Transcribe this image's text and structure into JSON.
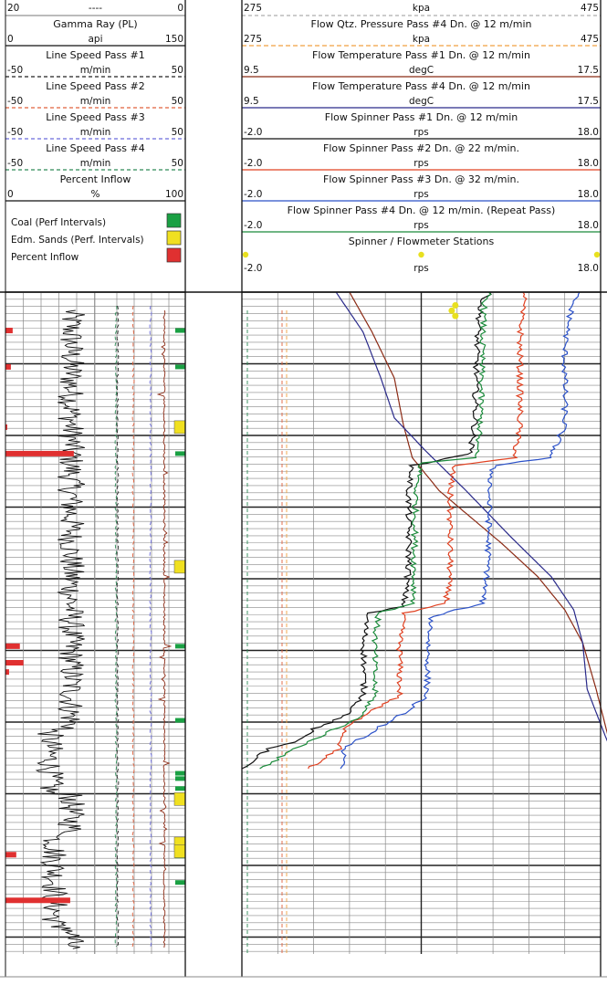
{
  "chart_data": {
    "type": "line",
    "left_track": {
      "curves": [
        {
          "name": "----",
          "min": "20",
          "max": "0",
          "units": "----",
          "color": "#555555",
          "dash": ""
        },
        {
          "name": "Gamma Ray (PL)",
          "min": "0",
          "max": "150",
          "units": "api",
          "color": "#111111",
          "dash": ""
        },
        {
          "name": "Line Speed Pass #1",
          "min": "-50",
          "max": "50",
          "units": "m/min",
          "color": "#222222",
          "dash": "4,3"
        },
        {
          "name": "Line Speed Pass #2",
          "min": "-50",
          "max": "50",
          "units": "m/min",
          "color": "#e0603c",
          "dash": "4,3"
        },
        {
          "name": "Line Speed Pass #3",
          "min": "-50",
          "max": "50",
          "units": "m/min",
          "color": "#6a6adc",
          "dash": "4,3"
        },
        {
          "name": "Line Speed Pass #4",
          "min": "-50",
          "max": "50",
          "units": "m/min",
          "color": "#2e8b57",
          "dash": "4,3"
        },
        {
          "name": "Percent Inflow",
          "min": "0",
          "max": "100",
          "units": "%",
          "color": "#111111",
          "dash": ""
        }
      ],
      "legend": [
        {
          "label": "Coal (Perf Intervals)",
          "color": "#1aa043"
        },
        {
          "label": "Edm. Sands (Perf. Intervals)",
          "color": "#f0e020"
        },
        {
          "label": "Percent Inflow",
          "color": "#e03030"
        }
      ],
      "coal_intervals": [
        0.058,
        0.113,
        0.244,
        0.535,
        0.647,
        0.727,
        0.735,
        0.75,
        0.852,
        0.892
      ],
      "sand_intervals": [
        0.204,
        0.415,
        0.766,
        0.833,
        0.845
      ],
      "inflow_percent": [
        {
          "depth": 0.058,
          "value": 4
        },
        {
          "depth": 0.113,
          "value": 3
        },
        {
          "depth": 0.204,
          "value": 1
        },
        {
          "depth": 0.244,
          "value": 38
        },
        {
          "depth": 0.535,
          "value": 8
        },
        {
          "depth": 0.56,
          "value": 10
        },
        {
          "depth": 0.574,
          "value": 2
        },
        {
          "depth": 0.85,
          "value": 6
        },
        {
          "depth": 0.919,
          "value": 36
        }
      ]
    },
    "right_track": {
      "curves": [
        {
          "name": "",
          "min": "275",
          "max": "475",
          "units": "kpa",
          "color": "#999999",
          "dash": "4,3"
        },
        {
          "name": "Flow Qtz. Pressure Pass #4 Dn. @ 12 m/min",
          "min": "275",
          "max": "475",
          "units": "kpa",
          "color": "#f0a040",
          "dash": "5,3"
        },
        {
          "name": "Flow Temperature Pass #1 Dn. @ 12 m/min",
          "min": "9.5",
          "max": "17.5",
          "units": "degC",
          "color": "#8b2a14",
          "dash": ""
        },
        {
          "name": "Flow Temperature Pass #4 Dn. @ 12 m/min",
          "min": "9.5",
          "max": "17.5",
          "units": "degC",
          "color": "#2a2a8a",
          "dash": ""
        },
        {
          "name": "Flow Spinner Pass #1 Dn. @ 12 m/min",
          "min": "-2.0",
          "max": "18.0",
          "units": "rps",
          "color": "#111111",
          "dash": ""
        },
        {
          "name": "Flow Spinner Pass #2 Dn. @ 22 m/min.",
          "min": "-2.0",
          "max": "18.0",
          "units": "rps",
          "color": "#e04020",
          "dash": ""
        },
        {
          "name": "Flow Spinner Pass #3 Dn. @ 32 m/min.",
          "min": "-2.0",
          "max": "18.0",
          "units": "rps",
          "color": "#2a50c8",
          "dash": ""
        },
        {
          "name": "Flow Spinner Pass #4 Dn. @ 12 m/min. (Repeat Pass)",
          "min": "-2.0",
          "max": "18.0",
          "units": "rps",
          "color": "#1a8a3a",
          "dash": ""
        },
        {
          "name": "Spinner / Flowmeter Stations",
          "min": "-2.0",
          "max": "18.0",
          "units": "rps",
          "color": "#e8e020",
          "dash": "dots"
        }
      ],
      "series": [
        {
          "name": "Flow Temperature Pass #1 Dn. @ 12 m/min",
          "units": "degC",
          "xrange": [
            9.5,
            17.5
          ],
          "color": "#8b2a14",
          "points": [
            [
              0.0,
              11.9
            ],
            [
              0.06,
              12.4
            ],
            [
              0.13,
              12.9
            ],
            [
              0.2,
              13.1
            ],
            [
              0.25,
              13.3
            ],
            [
              0.3,
              13.9
            ],
            [
              0.34,
              14.6
            ],
            [
              0.38,
              15.3
            ],
            [
              0.43,
              16.1
            ],
            [
              0.48,
              16.7
            ],
            [
              0.53,
              17.1
            ],
            [
              0.6,
              17.4
            ],
            [
              0.68,
              17.7
            ],
            [
              0.72,
              18.0
            ]
          ]
        },
        {
          "name": "Flow Temperature Pass #4 Dn. @ 12 m/min",
          "units": "degC",
          "xrange": [
            9.5,
            17.5
          ],
          "color": "#2a2a8a",
          "points": [
            [
              0.0,
              11.6
            ],
            [
              0.06,
              12.2
            ],
            [
              0.13,
              12.6
            ],
            [
              0.19,
              12.9
            ],
            [
              0.24,
              13.6
            ],
            [
              0.3,
              14.5
            ],
            [
              0.37,
              15.5
            ],
            [
              0.43,
              16.4
            ],
            [
              0.48,
              16.9
            ],
            [
              0.53,
              17.1
            ],
            [
              0.6,
              17.2
            ],
            [
              0.67,
              17.6
            ],
            [
              0.72,
              17.9
            ]
          ]
        },
        {
          "name": "Flow Spinner Pass #1 Dn. @ 12 m/min",
          "units": "rps",
          "xrange": [
            -2.0,
            18.0
          ],
          "color": "#111111",
          "points": [
            [
              0.0,
              11.8
            ],
            [
              0.02,
              11.3
            ],
            [
              0.08,
              11.1
            ],
            [
              0.2,
              11.0
            ],
            [
              0.245,
              10.7
            ],
            [
              0.262,
              7.5
            ],
            [
              0.3,
              7.3
            ],
            [
              0.42,
              7.3
            ],
            [
              0.475,
              7.0
            ],
            [
              0.485,
              5.0
            ],
            [
              0.53,
              4.8
            ],
            [
              0.61,
              4.8
            ],
            [
              0.64,
              3.8
            ],
            [
              0.66,
              2.0
            ],
            [
              0.68,
              1.0
            ],
            [
              0.69,
              -0.5
            ],
            [
              0.72,
              -2.0
            ]
          ]
        },
        {
          "name": "Flow Spinner Pass #2 Dn. @ 22 m/min.",
          "units": "rps",
          "xrange": [
            -2.0,
            18.0
          ],
          "color": "#e04020",
          "points": [
            [
              0.0,
              13.8
            ],
            [
              0.03,
              13.6
            ],
            [
              0.08,
              13.5
            ],
            [
              0.2,
              13.5
            ],
            [
              0.25,
              13.2
            ],
            [
              0.262,
              9.8
            ],
            [
              0.3,
              9.6
            ],
            [
              0.42,
              9.6
            ],
            [
              0.47,
              9.4
            ],
            [
              0.485,
              7.0
            ],
            [
              0.53,
              6.8
            ],
            [
              0.61,
              6.8
            ],
            [
              0.635,
              5.0
            ],
            [
              0.66,
              3.8
            ],
            [
              0.69,
              3.4
            ],
            [
              0.72,
              1.7
            ]
          ]
        },
        {
          "name": "Flow Spinner Pass #3 Dn. @ 32 m/min.",
          "units": "rps",
          "xrange": [
            -2.0,
            18.0
          ],
          "color": "#2a50c8",
          "points": [
            [
              0.0,
              16.7
            ],
            [
              0.02,
              16.4
            ],
            [
              0.08,
              16.0
            ],
            [
              0.2,
              16.0
            ],
            [
              0.25,
              15.2
            ],
            [
              0.262,
              12.0
            ],
            [
              0.3,
              11.8
            ],
            [
              0.42,
              11.7
            ],
            [
              0.47,
              11.4
            ],
            [
              0.49,
              8.6
            ],
            [
              0.53,
              8.4
            ],
            [
              0.61,
              8.3
            ],
            [
              0.64,
              6.8
            ],
            [
              0.66,
              5.5
            ],
            [
              0.69,
              3.7
            ],
            [
              0.72,
              3.5
            ]
          ]
        },
        {
          "name": "Flow Spinner Pass #4 Dn. @ 12 m/min. (Repeat Pass)",
          "units": "rps",
          "xrange": [
            -2.0,
            18.0
          ],
          "color": "#1a8a3a",
          "points": [
            [
              0.0,
              11.8
            ],
            [
              0.02,
              11.5
            ],
            [
              0.08,
              11.4
            ],
            [
              0.2,
              11.3
            ],
            [
              0.25,
              11.0
            ],
            [
              0.258,
              8.0
            ],
            [
              0.3,
              7.7
            ],
            [
              0.42,
              7.6
            ],
            [
              0.47,
              7.6
            ],
            [
              0.485,
              5.6
            ],
            [
              0.53,
              5.4
            ],
            [
              0.61,
              5.4
            ],
            [
              0.645,
              4.5
            ],
            [
              0.665,
              2.8
            ],
            [
              0.69,
              1.0
            ],
            [
              0.72,
              -1.0
            ]
          ]
        }
      ],
      "stations": [
        {
          "depth": 0.02,
          "value": 9.9
        },
        {
          "depth": 0.028,
          "value": 9.7
        },
        {
          "depth": 0.036,
          "value": 9.9
        }
      ]
    }
  }
}
